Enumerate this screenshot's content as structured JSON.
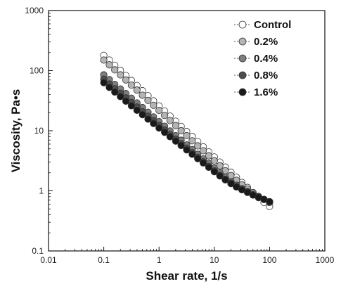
{
  "chart_data": {
    "type": "scatter",
    "xscale": "log",
    "yscale": "log",
    "xlim": [
      0.01,
      1000
    ],
    "ylim": [
      0.1,
      1000
    ],
    "xlabel": "Shear rate, 1/s",
    "ylabel": "Viscosity, Pa•s",
    "x_ticks": [
      0.01,
      0.1,
      1,
      10,
      100,
      1000
    ],
    "x_tick_labels": [
      "0.01",
      "0.1",
      "1",
      "10",
      "100",
      "1000"
    ],
    "y_ticks": [
      0.1,
      1,
      10,
      100,
      1000
    ],
    "y_tick_labels": [
      "0.1",
      "1",
      "10",
      "100",
      "1000"
    ],
    "legend_position": "top-right",
    "grid": false,
    "x": [
      0.1,
      0.126,
      0.158,
      0.2,
      0.251,
      0.316,
      0.398,
      0.501,
      0.631,
      0.794,
      1,
      1.26,
      1.58,
      2,
      2.51,
      3.16,
      3.98,
      5.01,
      6.31,
      7.94,
      10,
      12.6,
      15.8,
      20,
      25.1,
      31.6,
      39.8,
      50.1,
      63.1,
      79.4,
      100
    ],
    "series": [
      {
        "name": "Control",
        "fill": "#ffffff",
        "values": [
          180,
          150,
          123,
          101,
          83,
          68.6,
          56.5,
          46.4,
          38.2,
          31.4,
          25.9,
          21.3,
          17.5,
          14.4,
          11.8,
          9.7,
          8.0,
          6.6,
          5.4,
          4.45,
          3.66,
          3.01,
          2.48,
          2.04,
          1.68,
          1.38,
          1.14,
          0.94,
          0.77,
          0.64,
          0.55
        ]
      },
      {
        "name": "0.2%",
        "fill": "#b4b4b4",
        "values": [
          150,
          125,
          103,
          85,
          70,
          57.5,
          47.5,
          39,
          32,
          26.5,
          21.8,
          18,
          14.8,
          12.2,
          10,
          8.3,
          6.8,
          5.6,
          4.65,
          3.83,
          3.16,
          2.62,
          2.17,
          1.8,
          1.5,
          1.26,
          1.07,
          0.92,
          0.81,
          0.72,
          0.64
        ]
      },
      {
        "name": "0.4%",
        "fill": "#7e7e7e",
        "values": [
          85,
          71,
          59,
          49.5,
          41.5,
          34.8,
          29,
          24.3,
          20.3,
          17,
          14.2,
          11.9,
          9.9,
          8.3,
          6.95,
          5.8,
          4.85,
          4.06,
          3.4,
          2.85,
          2.38,
          2.0,
          1.68,
          1.43,
          1.24,
          1.09,
          0.97,
          0.87,
          0.79,
          0.72,
          0.66
        ]
      },
      {
        "name": "0.8%",
        "fill": "#4d4d4d",
        "values": [
          72,
          60,
          50,
          42,
          35.2,
          29.6,
          24.8,
          20.8,
          17.5,
          14.7,
          12.3,
          10.3,
          8.65,
          7.27,
          6.1,
          5.13,
          4.31,
          3.62,
          3.04,
          2.56,
          2.15,
          1.82,
          1.56,
          1.35,
          1.18,
          1.05,
          0.95,
          0.86,
          0.78,
          0.72,
          0.66
        ]
      },
      {
        "name": "1.6%",
        "fill": "#1a1a1a",
        "values": [
          63,
          52.6,
          44,
          37,
          31,
          26,
          21.9,
          18.5,
          15.6,
          13.2,
          11.1,
          9.4,
          7.95,
          6.72,
          5.68,
          4.8,
          4.06,
          3.43,
          2.91,
          2.46,
          2.08,
          1.77,
          1.52,
          1.32,
          1.16,
          1.04,
          0.94,
          0.85,
          0.78,
          0.72,
          0.66
        ]
      }
    ]
  }
}
